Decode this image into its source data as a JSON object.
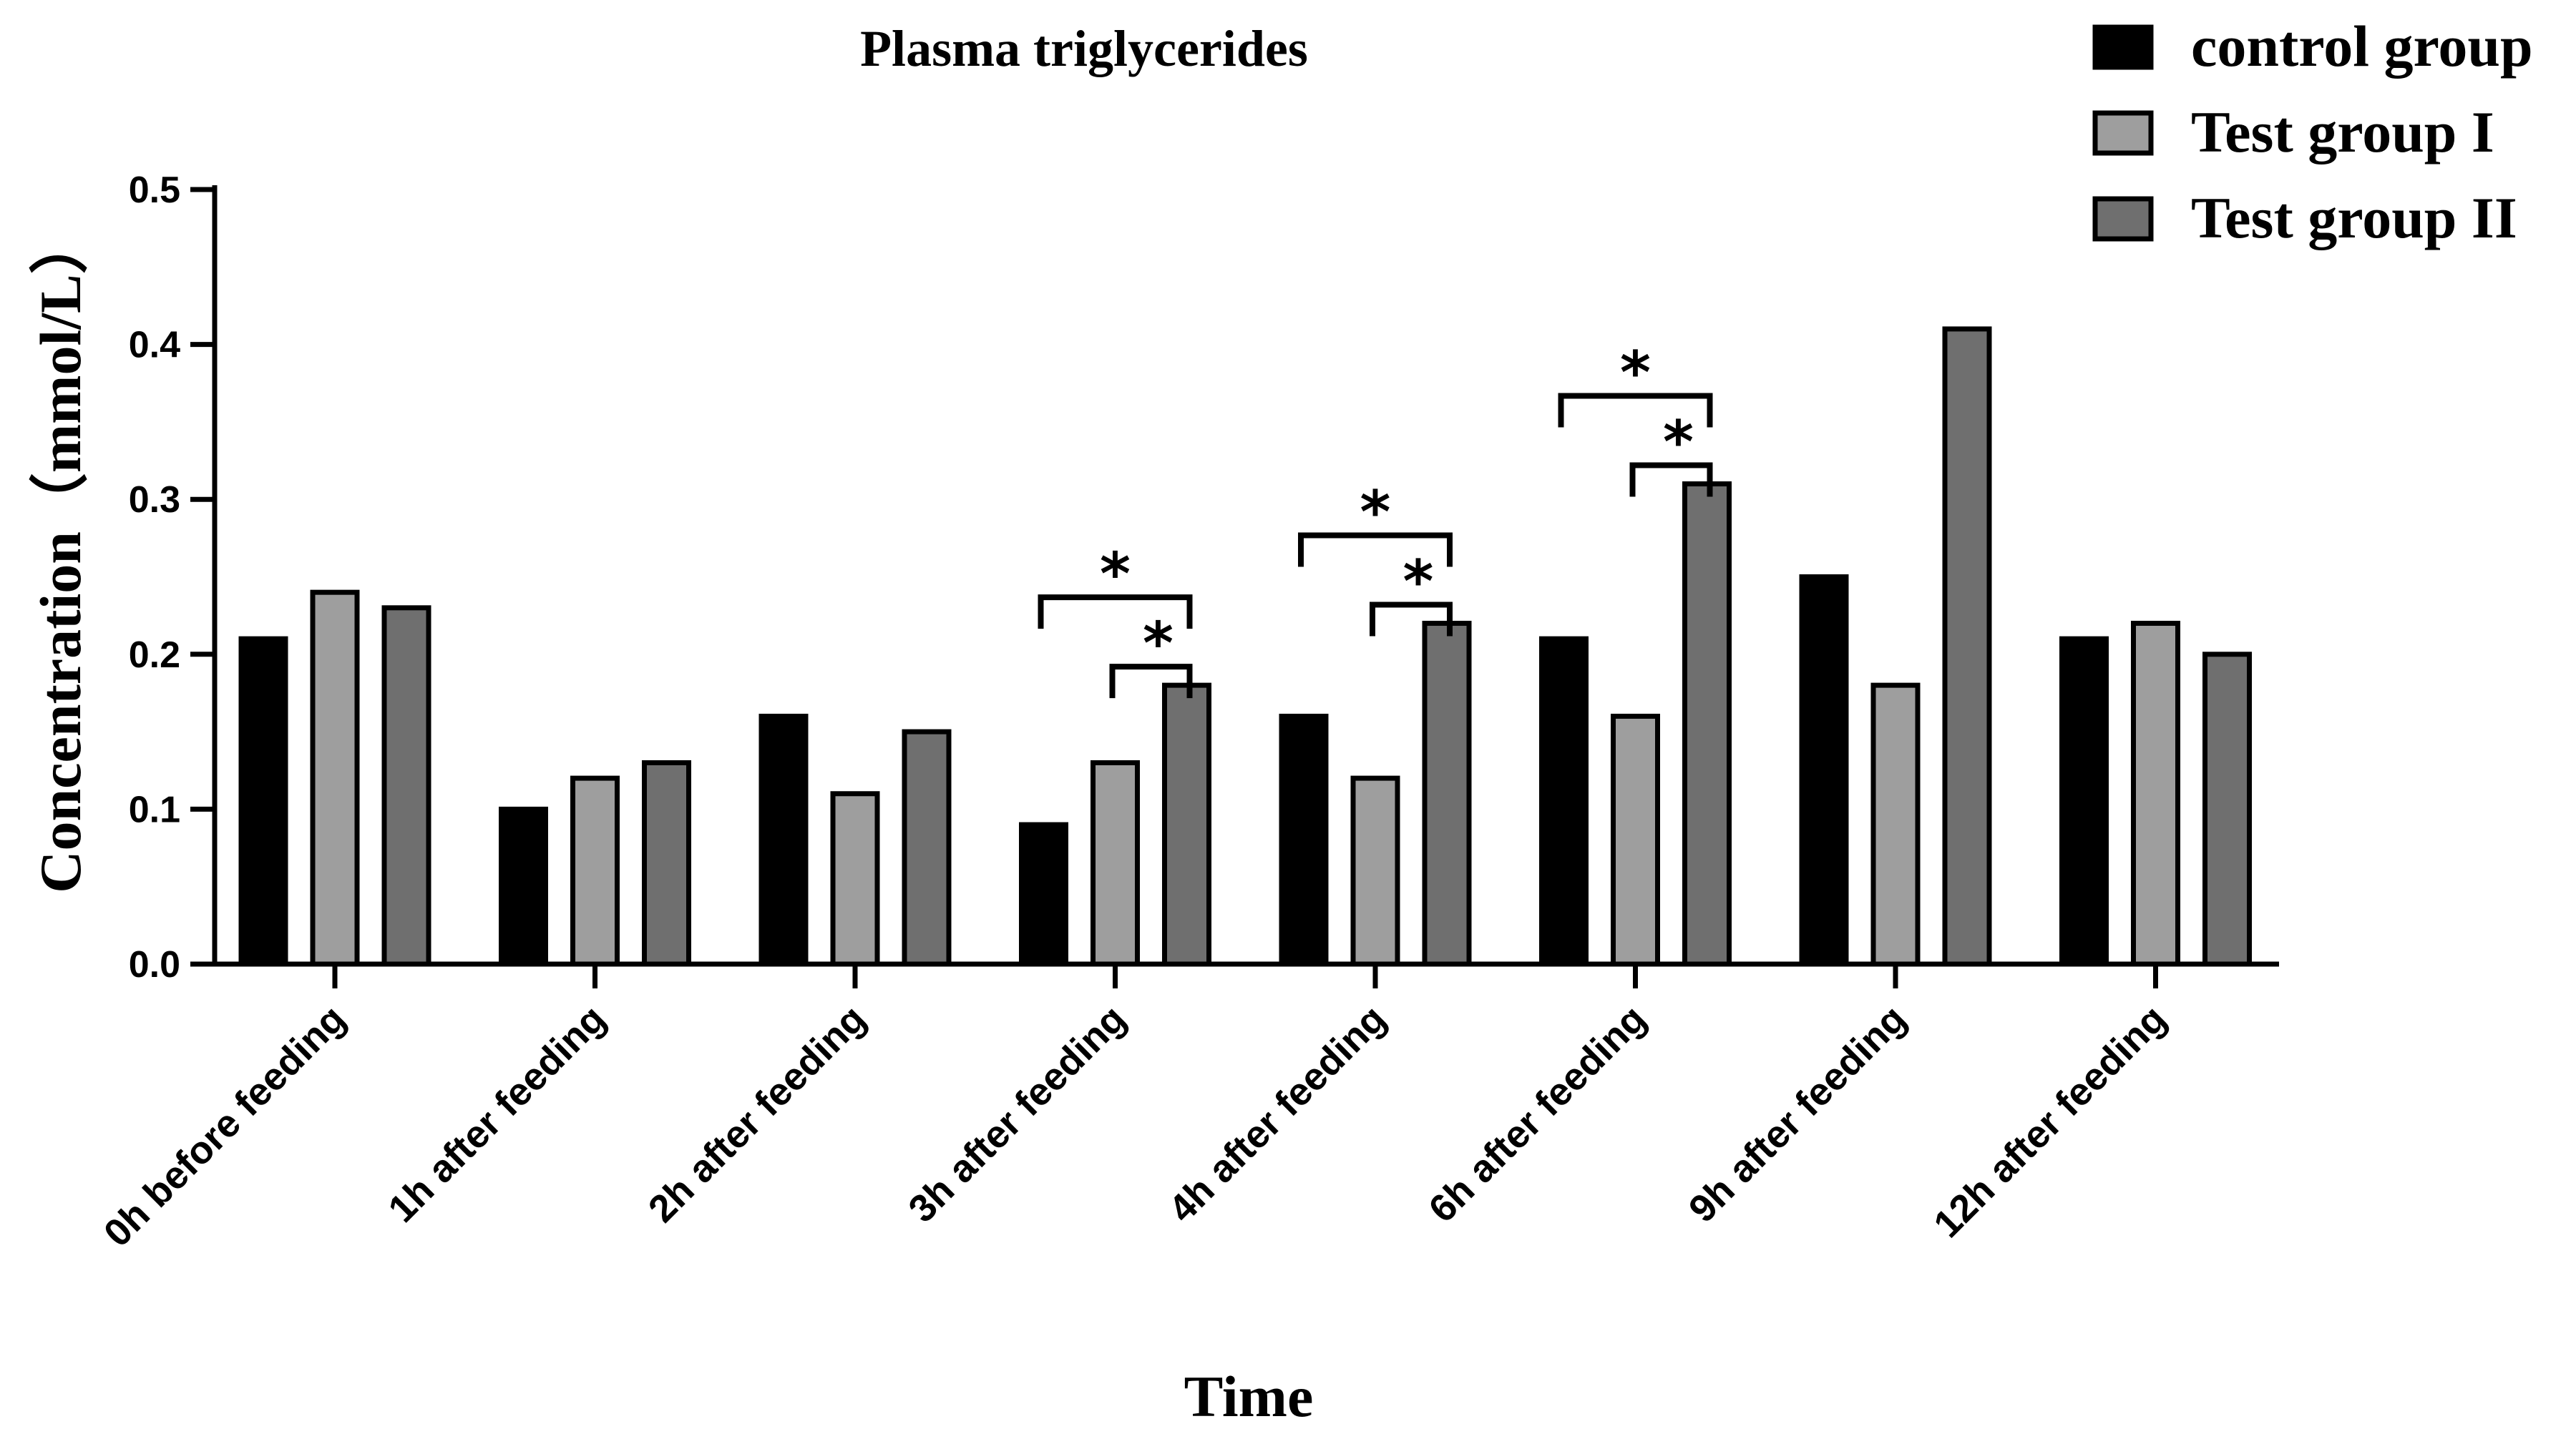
{
  "chart_data": {
    "type": "bar",
    "title": "Plasma triglycerides",
    "xlabel": "Time",
    "ylabel": "Concentration（mmol/L）",
    "ylim": [
      0,
      0.5
    ],
    "yticks": [
      "0.0",
      "0.1",
      "0.2",
      "0.3",
      "0.4",
      "0.5"
    ],
    "legend_position": "top-right",
    "categories": [
      "0h before feeding",
      "1h after feeding",
      "2h after feeding",
      "3h after feeding",
      "4h after feeding",
      "6h after feeding",
      "9h after feeding",
      "12h after feeding"
    ],
    "series": [
      {
        "name": "control group",
        "color": "#000000",
        "values": [
          0.21,
          0.1,
          0.16,
          0.09,
          0.16,
          0.21,
          0.25,
          0.21
        ]
      },
      {
        "name": "Test group I",
        "color": "#9e9e9e",
        "values": [
          0.24,
          0.12,
          0.11,
          0.13,
          0.12,
          0.16,
          0.18,
          0.22
        ]
      },
      {
        "name": "Test group II",
        "color": "#6f6f6f",
        "values": [
          0.23,
          0.13,
          0.15,
          0.18,
          0.22,
          0.31,
          0.41,
          0.2
        ]
      }
    ],
    "annotations": [
      {
        "category": 3,
        "from_series": 0,
        "to_series": 2,
        "label": "*"
      },
      {
        "category": 3,
        "from_series": 1,
        "to_series": 2,
        "label": "*"
      },
      {
        "category": 4,
        "from_series": 0,
        "to_series": 2,
        "label": "*"
      },
      {
        "category": 4,
        "from_series": 1,
        "to_series": 2,
        "label": "*"
      },
      {
        "category": 5,
        "from_series": 0,
        "to_series": 2,
        "label": "*"
      },
      {
        "category": 5,
        "from_series": 1,
        "to_series": 2,
        "label": "*"
      }
    ]
  }
}
